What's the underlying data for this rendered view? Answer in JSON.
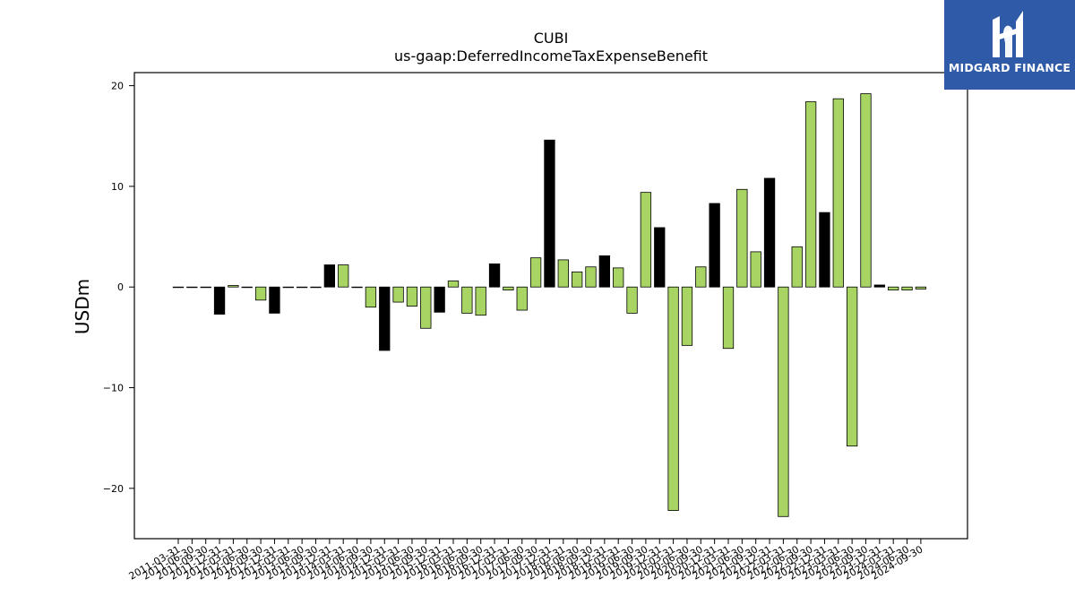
{
  "chart_data": {
    "type": "bar",
    "title": "CUBI",
    "subtitle": "us-gaap:DeferredIncomeTaxExpenseBenefit",
    "ylabel": "USDm",
    "xlabel": "",
    "ylim": [
      -25,
      21.3
    ],
    "yticks": [
      -20,
      -10,
      0,
      10,
      20
    ],
    "ytick_labels": [
      "−20",
      "−10",
      "0",
      "10",
      "20"
    ],
    "grid": false,
    "colors": {
      "quarterly": "#a8d464",
      "annual": "#000000"
    },
    "categories": [
      "2011-03-31",
      "2011-06-30",
      "2011-09-30",
      "2011-12-31",
      "2012-03-31",
      "2012-06-30",
      "2012-09-30",
      "2012-12-31",
      "2013-03-31",
      "2013-06-30",
      "2013-09-30",
      "2013-12-31",
      "2014-03-31",
      "2014-06-30",
      "2014-09-30",
      "2014-12-31",
      "2015-03-31",
      "2015-06-30",
      "2015-09-30",
      "2015-12-31",
      "2016-03-31",
      "2016-06-30",
      "2016-09-30",
      "2016-12-31",
      "2017-03-31",
      "2017-06-30",
      "2017-09-30",
      "2017-12-31",
      "2018-03-31",
      "2018-06-30",
      "2018-09-30",
      "2018-12-31",
      "2019-03-31",
      "2019-06-30",
      "2019-09-30",
      "2019-12-31",
      "2020-03-31",
      "2020-06-30",
      "2020-09-30",
      "2020-12-31",
      "2021-03-31",
      "2021-06-30",
      "2021-09-30",
      "2021-12-31",
      "2022-03-31",
      "2022-06-30",
      "2022-09-30",
      "2022-12-31",
      "2023-03-31",
      "2023-06-30",
      "2023-09-30",
      "2023-12-31",
      "2024-03-31",
      "2024-06-30",
      "2024-09-30"
    ],
    "values": [
      0,
      0,
      0,
      -2.7,
      0.15,
      0,
      -1.3,
      -2.6,
      0,
      0,
      0,
      2.2,
      2.2,
      0,
      -2.0,
      -6.3,
      -1.5,
      -1.9,
      -4.1,
      -2.5,
      0.6,
      -2.6,
      -2.8,
      2.3,
      -0.3,
      -2.3,
      2.9,
      14.6,
      2.7,
      1.5,
      2.0,
      3.1,
      1.9,
      -2.6,
      9.4,
      5.9,
      -22.2,
      -5.8,
      2.0,
      8.3,
      -6.1,
      9.7,
      3.5,
      10.8,
      -22.8,
      4.0,
      18.4,
      7.4,
      18.7,
      -15.8,
      19.2,
      0.2,
      -0.3,
      -0.3,
      -0.2
    ],
    "annual": [
      false,
      false,
      false,
      true,
      false,
      false,
      false,
      true,
      false,
      false,
      false,
      true,
      false,
      false,
      false,
      true,
      false,
      false,
      false,
      true,
      false,
      false,
      false,
      true,
      false,
      false,
      false,
      true,
      false,
      false,
      false,
      true,
      false,
      false,
      false,
      true,
      false,
      false,
      false,
      true,
      false,
      false,
      false,
      true,
      false,
      false,
      false,
      true,
      false,
      false,
      false,
      true,
      false,
      false,
      false
    ]
  },
  "logo": {
    "text": "MIDGARD FINANCE"
  }
}
